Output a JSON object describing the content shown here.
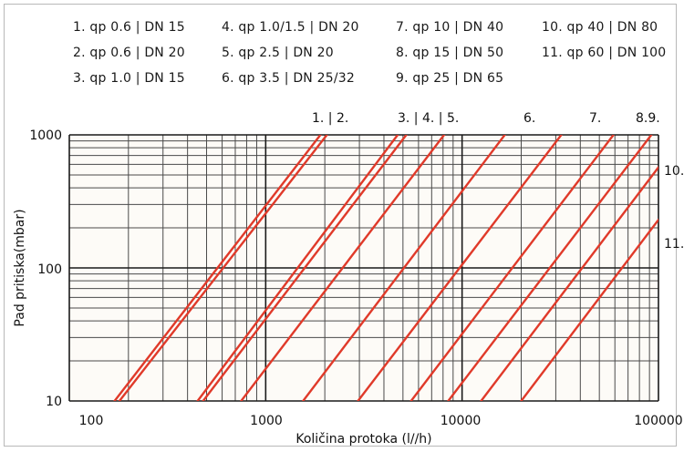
{
  "chart_data": {
    "type": "line",
    "x_scale": "log",
    "y_scale": "log",
    "xlim": [
      100,
      100000
    ],
    "ylim": [
      10,
      1000
    ],
    "xlabel": "Količina protoka (l//h)",
    "ylabel": "Pad pritiska(mbar)",
    "x_ticks": [
      "100",
      "1000",
      "10000",
      "100000"
    ],
    "y_ticks": [
      "10",
      "100",
      "1000"
    ],
    "grid": true,
    "line_color": "#e03a2a",
    "legend_placement": "top",
    "legend": [
      "1. qp 0.6 | DN 15",
      "2. qp 0.6 | DN 20",
      "3. qp 1.0 | DN 15",
      "4. qp 1.0/1.5 | DN 20",
      "5. qp 2.5 | DN 20",
      "6. qp 3.5 | DN 25/32",
      "7. qp 10 | DN 40",
      "8. qp 15 | DN 50",
      "9. qp 25 | DN 65",
      "10. qp 40 | DN 80",
      "11. qp 60 | DN 100"
    ],
    "curve_labels": [
      "1. | 2.",
      "3. | 4. | 5.",
      "6.",
      "7.",
      "8.9.",
      "10.",
      "11."
    ],
    "series": [
      {
        "x": [
          170,
          1900
        ],
        "y": [
          10,
          1000
        ]
      },
      {
        "x": [
          180,
          2050
        ],
        "y": [
          10,
          1000
        ]
      },
      {
        "x": [
          450,
          4700
        ],
        "y": [
          10,
          1000
        ]
      },
      {
        "x": [
          480,
          5200
        ],
        "y": [
          10,
          1000
        ]
      },
      {
        "x": [
          750,
          8100
        ],
        "y": [
          10,
          1000
        ]
      },
      {
        "x": [
          1550,
          16500
        ],
        "y": [
          10,
          1000
        ]
      },
      {
        "x": [
          2950,
          32000
        ],
        "y": [
          10,
          1000
        ]
      },
      {
        "x": [
          5500,
          59000
        ],
        "y": [
          10,
          1000
        ]
      },
      {
        "x": [
          8500,
          92000
        ],
        "y": [
          10,
          1000
        ]
      },
      {
        "x": [
          12500,
          100000
        ],
        "y": [
          10,
          570
        ]
      },
      {
        "x": [
          20000,
          100000
        ],
        "y": [
          10,
          230
        ]
      }
    ]
  }
}
